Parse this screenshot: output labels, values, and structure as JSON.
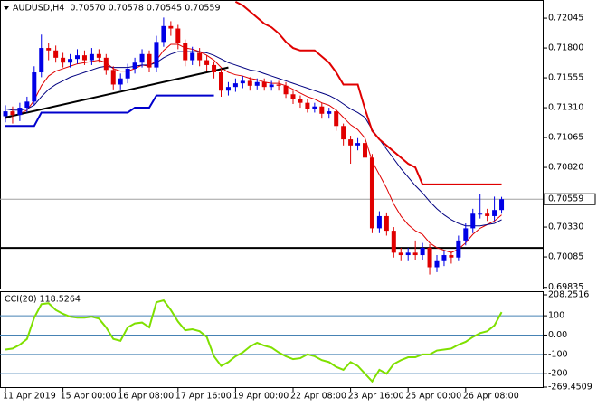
{
  "chart_data": [
    {
      "type": "candlestick",
      "title": "AUDUSD,H4  0.70570 0.70578 0.70545 0.70559",
      "categories": [
        "11 Apr 2019",
        null,
        null,
        null,
        null,
        null,
        null,
        null,
        "15 Apr 00:00",
        null,
        null,
        null,
        null,
        null,
        null,
        null,
        "16 Apr 08:00",
        null,
        null,
        null,
        null,
        null,
        null,
        null,
        "17 Apr 16:00",
        null,
        null,
        null,
        null,
        null,
        null,
        null,
        "19 Apr 00:00",
        null,
        null,
        null,
        null,
        null,
        null,
        null,
        "22 Apr 08:00",
        null,
        null,
        null,
        null,
        null,
        null,
        null,
        "23 Apr 16:00",
        null,
        null,
        null,
        null,
        null,
        null,
        null,
        "25 Apr 00:00",
        null,
        null,
        null,
        null,
        null,
        null,
        null,
        "26 Apr 08:00",
        null,
        null,
        null,
        null,
        null
      ],
      "open": [
        0.7124,
        0.7128,
        0.7125,
        0.7131,
        0.7136,
        0.716,
        0.718,
        0.7178,
        0.7172,
        0.7168,
        0.7171,
        0.7174,
        0.717,
        0.7175,
        0.7172,
        0.7162,
        0.715,
        0.7155,
        0.7163,
        0.7168,
        0.7175,
        0.7164,
        0.7185,
        0.7198,
        0.7196,
        0.7184,
        0.717,
        0.7176,
        0.717,
        0.7166,
        0.716,
        0.7145,
        0.7148,
        0.7151,
        0.7153,
        0.7149,
        0.7152,
        0.7148,
        0.715,
        0.7149,
        0.7142,
        0.7138,
        0.7135,
        0.713,
        0.7132,
        0.7126,
        0.7128,
        0.7116,
        0.7105,
        0.71,
        0.7102,
        0.709,
        0.7032,
        0.7042,
        0.703,
        0.7012,
        0.701,
        0.7012,
        0.701,
        0.7016,
        0.7,
        0.7005,
        0.701,
        0.7008,
        0.7022,
        0.7032,
        0.7044,
        0.7044,
        0.7042,
        0.7047
      ],
      "high": [
        0.7133,
        0.7132,
        0.7135,
        0.714,
        0.7165,
        0.7191,
        0.7184,
        0.7182,
        0.7176,
        0.7175,
        0.7179,
        0.7178,
        0.718,
        0.7179,
        0.7175,
        0.7165,
        0.7159,
        0.7167,
        0.7172,
        0.7179,
        0.7178,
        0.719,
        0.7205,
        0.7202,
        0.7199,
        0.7187,
        0.7181,
        0.718,
        0.7174,
        0.7169,
        0.7163,
        0.7152,
        0.7155,
        0.7157,
        0.7156,
        0.7155,
        0.7155,
        0.7153,
        0.7153,
        0.7152,
        0.7145,
        0.7141,
        0.7138,
        0.7135,
        0.7135,
        0.7131,
        0.713,
        0.7118,
        0.7108,
        0.7106,
        0.7105,
        0.7093,
        0.7046,
        0.7045,
        0.7033,
        0.7016,
        0.7016,
        0.7022,
        0.702,
        0.7019,
        0.701,
        0.7014,
        0.7013,
        0.7026,
        0.7036,
        0.7048,
        0.706,
        0.7048,
        0.7058,
        0.70578
      ],
      "low": [
        0.7119,
        0.7118,
        0.712,
        0.7127,
        0.7133,
        0.7156,
        0.717,
        0.7168,
        0.7164,
        0.7164,
        0.7167,
        0.7166,
        0.7166,
        0.7168,
        0.7158,
        0.7146,
        0.7146,
        0.7151,
        0.7159,
        0.7164,
        0.716,
        0.716,
        0.7181,
        0.719,
        0.7179,
        0.7165,
        0.7166,
        0.7165,
        0.7161,
        0.7155,
        0.714,
        0.7141,
        0.7144,
        0.7147,
        0.7145,
        0.7146,
        0.7145,
        0.7145,
        0.7145,
        0.7139,
        0.7134,
        0.7131,
        0.7127,
        0.7127,
        0.7122,
        0.7122,
        0.7112,
        0.71,
        0.7085,
        0.7096,
        0.7086,
        0.7028,
        0.7028,
        0.7026,
        0.7008,
        0.7005,
        0.7005,
        0.7006,
        0.7006,
        0.6994,
        0.6996,
        0.7001,
        0.7003,
        0.7005,
        0.7018,
        0.7028,
        0.704,
        0.7038,
        0.7038,
        0.7044
      ],
      "close": [
        0.7128,
        0.7125,
        0.7131,
        0.7136,
        0.716,
        0.718,
        0.7178,
        0.7172,
        0.7168,
        0.7171,
        0.7174,
        0.717,
        0.7175,
        0.7172,
        0.7162,
        0.715,
        0.7155,
        0.7163,
        0.7168,
        0.7175,
        0.7164,
        0.7185,
        0.7198,
        0.7196,
        0.7184,
        0.717,
        0.7176,
        0.717,
        0.7166,
        0.716,
        0.7145,
        0.7148,
        0.7151,
        0.7153,
        0.7149,
        0.7152,
        0.7148,
        0.715,
        0.7149,
        0.7142,
        0.7138,
        0.7135,
        0.713,
        0.7132,
        0.7126,
        0.7128,
        0.7116,
        0.7105,
        0.71,
        0.7102,
        0.709,
        0.7032,
        0.7042,
        0.703,
        0.7012,
        0.701,
        0.7012,
        0.701,
        0.7016,
        0.7,
        0.7005,
        0.701,
        0.7008,
        0.7022,
        0.7032,
        0.7044,
        0.7044,
        0.7042,
        0.7047,
        0.70559
      ],
      "up_color": "#0000e6",
      "down_color": "#e00000",
      "series": [
        {
          "color": "#e00000",
          "line_width": 1,
          "values": [
            0.7122,
            0.7124,
            0.7126,
            0.7129,
            0.7137,
            0.7149,
            0.7157,
            0.7161,
            0.7163,
            0.7165,
            0.7167,
            0.7168,
            0.7169,
            0.717,
            0.7168,
            0.7163,
            0.7161,
            0.7161,
            0.7163,
            0.7166,
            0.7165,
            0.717,
            0.7178,
            0.7183,
            0.7183,
            0.718,
            0.7179,
            0.7177,
            0.7174,
            0.717,
            0.7164,
            0.716,
            0.7158,
            0.7157,
            0.7155,
            0.7154,
            0.7152,
            0.7151,
            0.7151,
            0.7149,
            0.7146,
            0.7143,
            0.714,
            0.7138,
            0.7135,
            0.7133,
            0.7129,
            0.7123,
            0.7117,
            0.7113,
            0.7106,
            0.7087,
            0.7076,
            0.7065,
            0.7052,
            0.7042,
            0.7035,
            0.703,
            0.7027,
            0.702,
            0.7016,
            0.7014,
            0.7012,
            0.7015,
            0.702,
            0.7027,
            0.7032,
            0.7035,
            0.7038,
            0.7043
          ]
        },
        {
          "color": "#000080",
          "line_width": 1,
          "values": [
            0.713,
            0.7129,
            0.7129,
            0.713,
            0.7133,
            0.714,
            0.7146,
            0.715,
            0.7153,
            0.7156,
            0.7158,
            0.716,
            0.7162,
            0.7164,
            0.7165,
            0.7164,
            0.7164,
            0.7164,
            0.7165,
            0.7166,
            0.7166,
            0.7168,
            0.7172,
            0.7175,
            0.7177,
            0.7177,
            0.7177,
            0.7177,
            0.7176,
            0.7174,
            0.7171,
            0.7168,
            0.7166,
            0.7164,
            0.7162,
            0.7161,
            0.7159,
            0.7157,
            0.7155,
            0.7153,
            0.7151,
            0.7149,
            0.7147,
            0.7145,
            0.7143,
            0.7141,
            0.7138,
            0.7134,
            0.713,
            0.7127,
            0.7123,
            0.7113,
            0.7105,
            0.7097,
            0.7089,
            0.7081,
            0.7074,
            0.7067,
            0.7061,
            0.7054,
            0.7048,
            0.7043,
            0.7039,
            0.7036,
            0.7034,
            0.7034,
            0.7034,
            0.7035,
            0.7036,
            0.7039
          ]
        },
        {
          "color": "#e00000",
          "line_width": 2,
          "values": [
            null,
            null,
            null,
            null,
            null,
            null,
            null,
            null,
            null,
            null,
            null,
            null,
            null,
            null,
            null,
            null,
            null,
            null,
            null,
            null,
            null,
            null,
            null,
            null,
            null,
            null,
            null,
            null,
            null,
            null,
            null,
            null,
            0.7218,
            0.7215,
            0.721,
            0.7205,
            0.72,
            0.7197,
            0.7192,
            0.7185,
            0.718,
            0.7178,
            0.7178,
            0.7178,
            0.7173,
            0.7168,
            0.716,
            0.715,
            0.715,
            0.715,
            0.713,
            0.7112,
            0.7105,
            0.71,
            0.7095,
            0.709,
            0.7085,
            0.7082,
            0.7068,
            0.7068,
            0.7068,
            0.7068,
            0.7068,
            0.7068,
            0.7068,
            0.7068,
            0.7068,
            0.7068,
            0.7068,
            0.7068
          ]
        },
        {
          "color": "#0000cc",
          "line_width": 2,
          "values": [
            0.7116,
            0.7116,
            0.7116,
            0.7116,
            0.7116,
            0.7127,
            0.7127,
            0.7127,
            0.7127,
            0.7127,
            0.7127,
            0.7127,
            0.7127,
            0.7127,
            0.7127,
            0.7127,
            0.7127,
            0.7127,
            0.7131,
            0.7131,
            0.7131,
            0.7141,
            0.7141,
            0.7141,
            0.7141,
            0.7141,
            0.7141,
            0.7141,
            0.7141,
            0.7141,
            null,
            null,
            null,
            null,
            null,
            null,
            null,
            null,
            null,
            null,
            null,
            null,
            null,
            null,
            null,
            null,
            null,
            null,
            null,
            null,
            null,
            null,
            null,
            null,
            null,
            null,
            null,
            null,
            null,
            null,
            null,
            null,
            null,
            null,
            null,
            null,
            null,
            null,
            null,
            null
          ]
        }
      ],
      "trendlines": [
        {
          "x": [
            0,
            31
          ],
          "y": [
            0.7123,
            0.7164
          ],
          "color": "#000000"
        }
      ],
      "hlines": [
        {
          "value": 0.70159,
          "color": "#000000"
        }
      ],
      "last_price": {
        "value": 0.70559,
        "label": "0.70559"
      },
      "ylim": [
        0.69833,
        0.72194
      ],
      "yticks": [
        0.72045,
        {
          "value": 0.718,
          "label": "0.71800"
        },
        0.71555,
        {
          "value": 0.7131,
          "label": "0.71310"
        },
        0.71065,
        {
          "value": 0.7082,
          "label": "0.70820"
        },
        {
          "value": 0.7033,
          "label": "0.70330"
        },
        0.70085,
        0.69835
      ]
    },
    {
      "type": "line",
      "label": "CCI(20) 118.5264",
      "series": [
        {
          "color": "#7fe000",
          "line_width": 2,
          "values": [
            -75,
            -70,
            -50,
            -20,
            90,
            160,
            165,
            130,
            110,
            95,
            90,
            90,
            95,
            85,
            40,
            -20,
            -30,
            40,
            60,
            65,
            40,
            170,
            180,
            130,
            70,
            25,
            30,
            20,
            -10,
            -110,
            -160,
            -140,
            -110,
            -90,
            -60,
            -40,
            -55,
            -65,
            -90,
            -110,
            -125,
            -120,
            -100,
            -110,
            -130,
            -140,
            -165,
            -180,
            -140,
            -160,
            -200,
            -240,
            -180,
            -200,
            -150,
            -130,
            -115,
            -115,
            -100,
            -100,
            -80,
            -75,
            -70,
            -50,
            -35,
            -10,
            10,
            20,
            50,
            118.5264
          ]
        }
      ],
      "ylim": [
        -269.4509,
        208.2516
      ],
      "yticks": [
        208.2516,
        100,
        {
          "value": 0,
          "label": "0.00"
        },
        -100,
        -200,
        -269.4509
      ]
    }
  ]
}
